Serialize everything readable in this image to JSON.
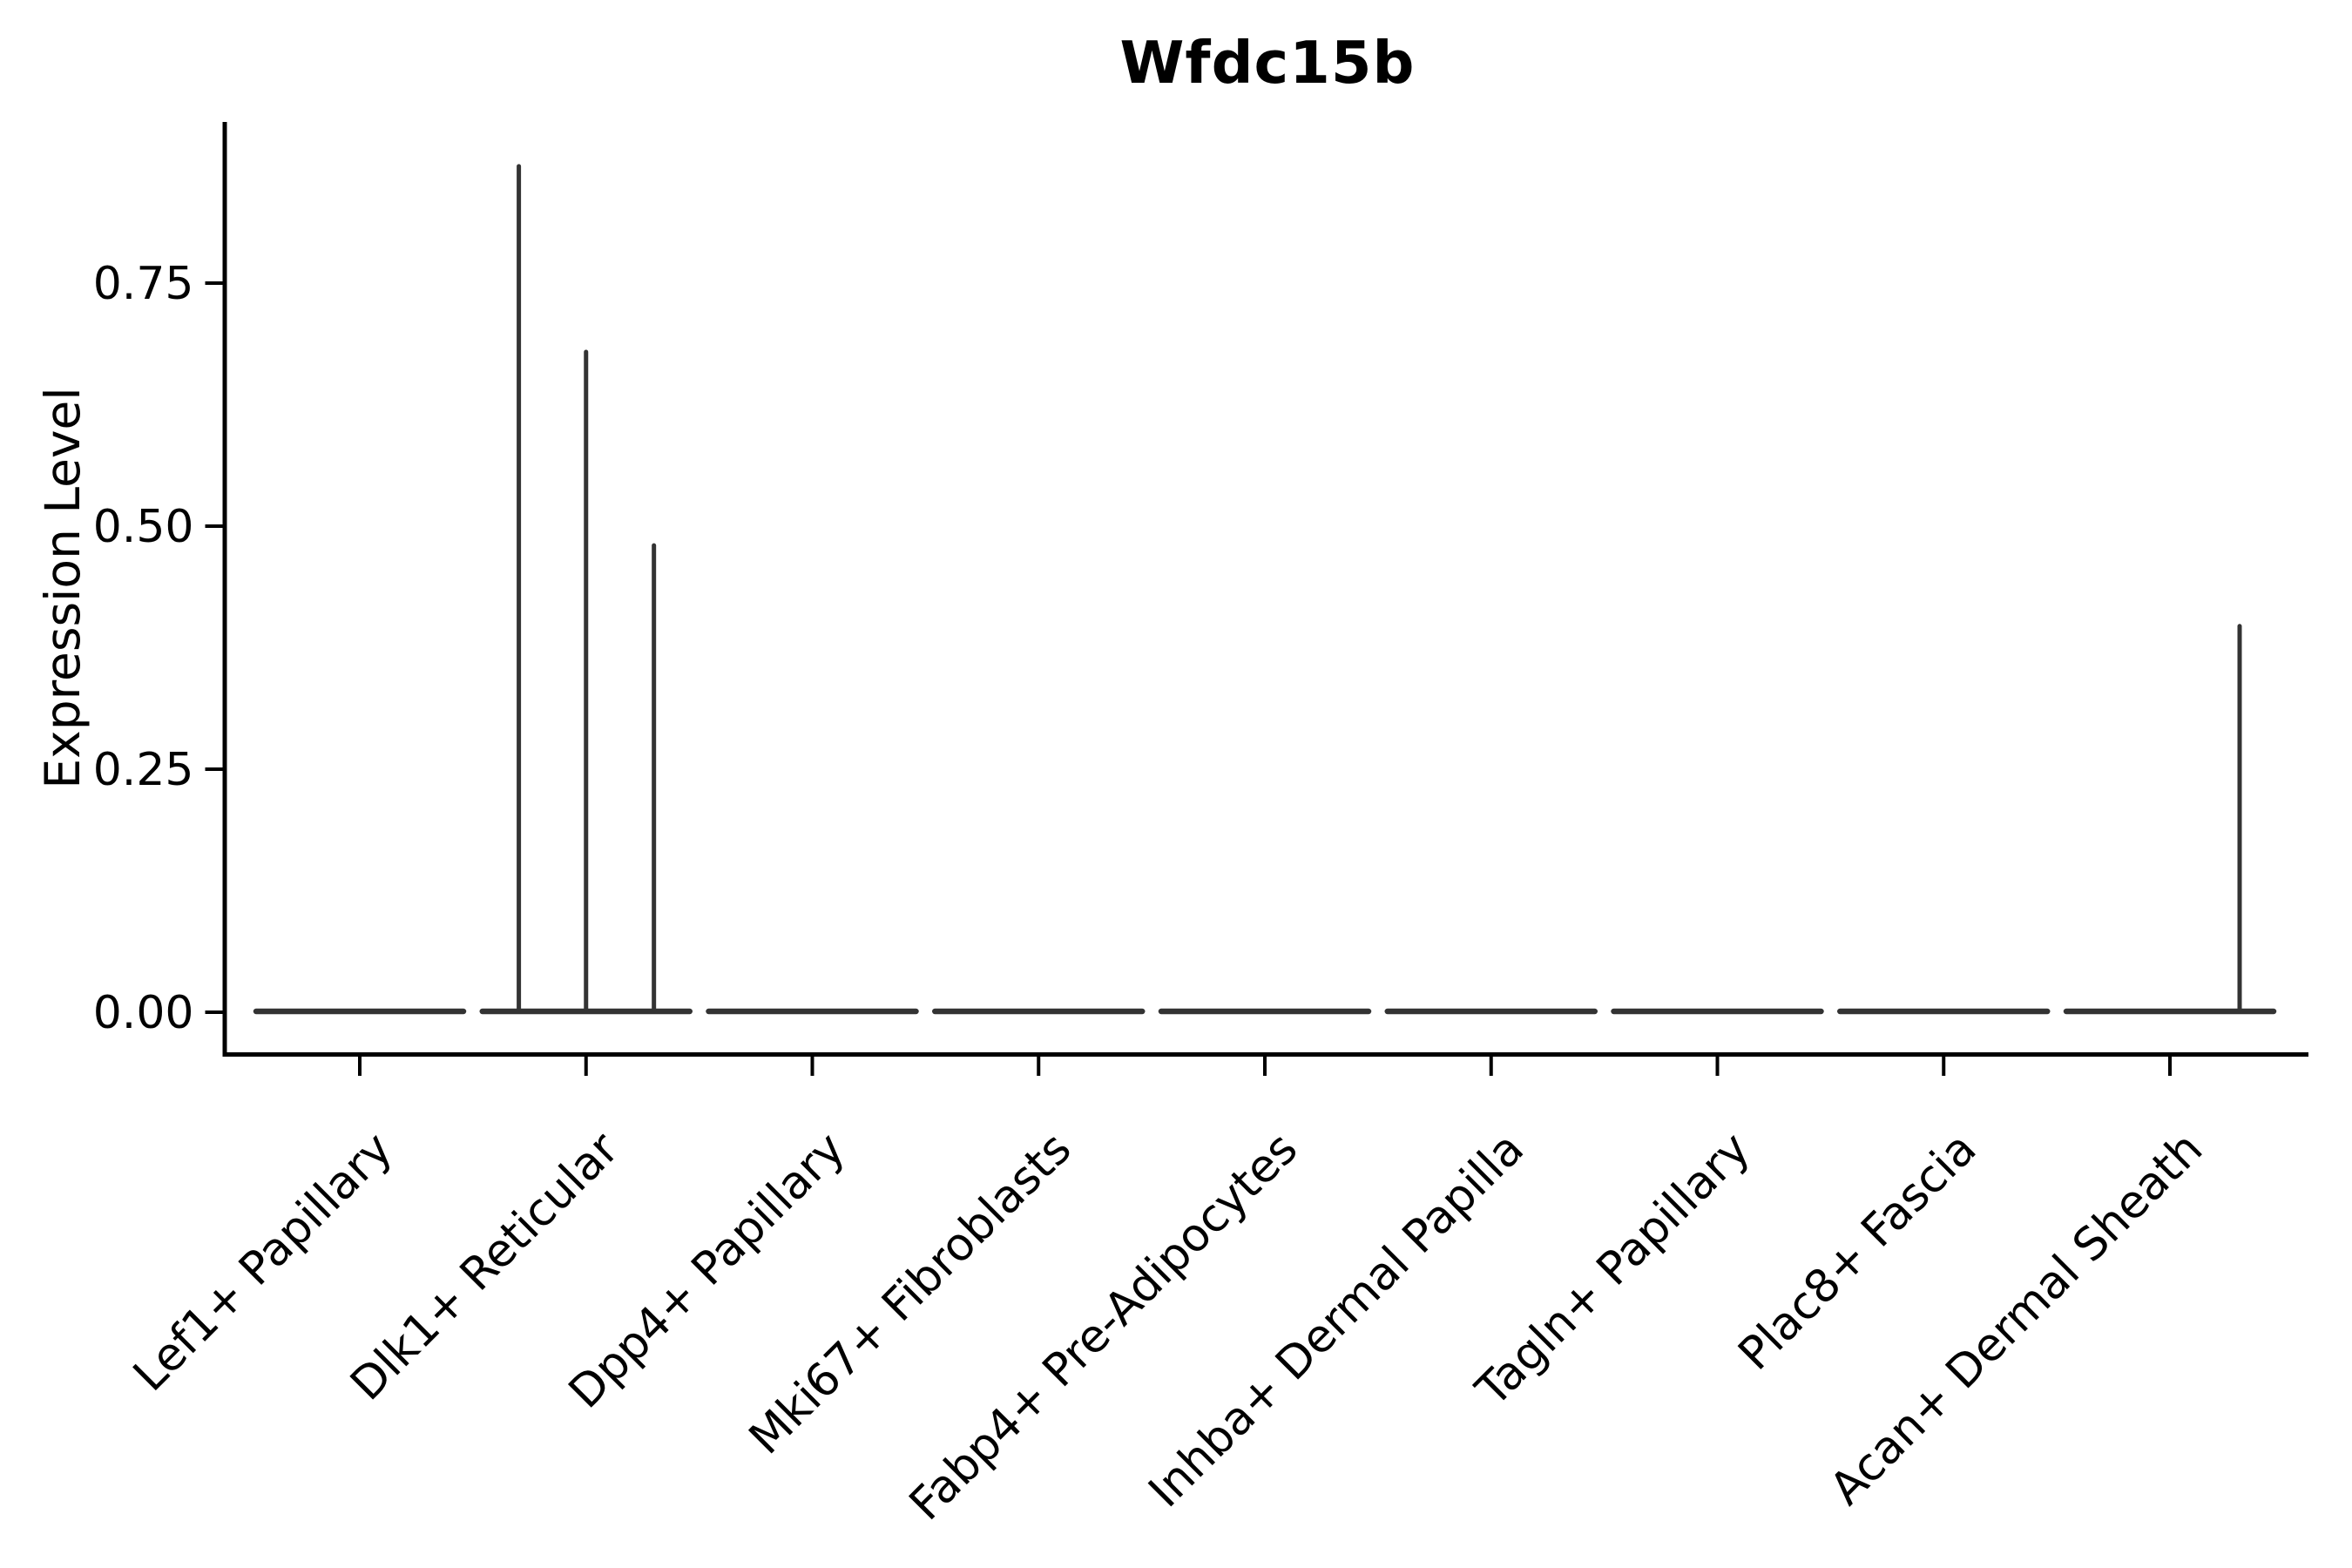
{
  "chart_data": {
    "type": "violin",
    "title": "Wfdc15b",
    "ylabel": "Expression Level",
    "xlabel": "",
    "grid": false,
    "legend": null,
    "ylim": [
      -0.044,
      0.916
    ],
    "ytick_values": [
      0,
      0.25,
      0.5,
      0.75
    ],
    "ytick_labels": [
      "0.00",
      "0.25",
      "0.50",
      "0.75"
    ],
    "categories": [
      "Lef1+ Papillary",
      "Dlk1+ Reticular",
      "Dpp4+ Papillary",
      "Mki67+ Fibroblasts",
      "Fabp4+ Pre-Adipocytes",
      "Inhba+ Dermal Papilla",
      "Tagln+ Papillary",
      "Plac8+ Fascia",
      "Acan+ Dermal Sheath"
    ],
    "violins": [
      {
        "category": "Lef1+ Papillary",
        "base_value": 0,
        "spikes": []
      },
      {
        "category": "Dlk1+ Reticular",
        "base_value": 0,
        "spikes": [
          {
            "dx_frac": -0.297,
            "value": 0.872
          },
          {
            "dx_frac": 0.0,
            "value": 0.681
          },
          {
            "dx_frac": 0.3,
            "value": 0.482
          }
        ]
      },
      {
        "category": "Dpp4+ Papillary",
        "base_value": 0,
        "spikes": []
      },
      {
        "category": "Mki67+ Fibroblasts",
        "base_value": 0,
        "spikes": []
      },
      {
        "category": "Fabp4+ Pre-Adipocytes",
        "base_value": 0,
        "spikes": []
      },
      {
        "category": "Inhba+ Dermal Papilla",
        "base_value": 0,
        "spikes": []
      },
      {
        "category": "Tagln+ Papillary",
        "base_value": 0,
        "spikes": []
      },
      {
        "category": "Plac8+ Fascia",
        "base_value": 0,
        "spikes": []
      },
      {
        "category": "Acan+ Dermal Sheath",
        "base_value": 0,
        "spikes": [
          {
            "dx_frac": 0.308,
            "value": 0.399
          }
        ]
      }
    ],
    "colors": {
      "violin_line": "#333333",
      "spine": "#000000",
      "text": "#000000",
      "background": "#ffffff"
    }
  }
}
